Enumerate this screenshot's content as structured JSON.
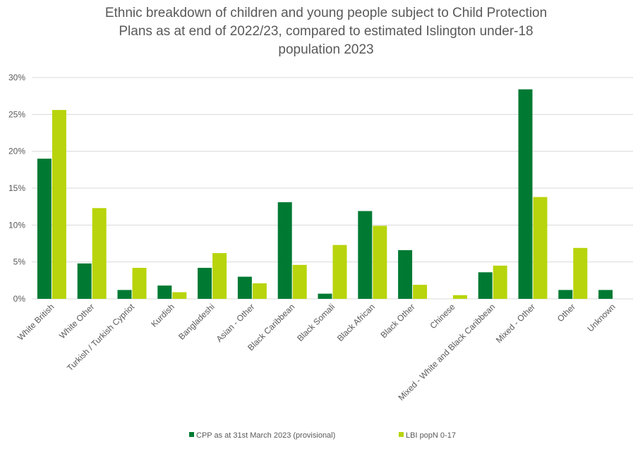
{
  "chart_data": {
    "type": "bar",
    "title_lines": [
      "Ethnic breakdown of children and young people subject to Child Protection",
      "Plans as at end of 2022/23, compared to estimated Islington under-18",
      "population 2023"
    ],
    "categories": [
      "White British",
      "White Other",
      "Turkish / Turkish Cypriot",
      "Kurdish",
      "Bangladeshi",
      "Asian - Other",
      "Black Caribbean",
      "Black Somali",
      "Black African",
      "Black Other",
      "Chinese",
      "Mixed - White and Black Caribbean",
      "Mixed - Other",
      "Other",
      "Unknown"
    ],
    "series": [
      {
        "name": "CPP as at 31st March 2023 (provisional)",
        "color": "#007a33",
        "values": [
          19.0,
          4.8,
          1.2,
          1.8,
          4.2,
          3.0,
          13.1,
          0.7,
          11.9,
          6.6,
          0,
          3.6,
          28.4,
          1.2,
          1.2
        ]
      },
      {
        "name": "LBI popN 0-17",
        "color": "#b8d40c",
        "values": [
          25.6,
          12.3,
          4.2,
          0.9,
          6.2,
          2.1,
          4.6,
          7.3,
          9.9,
          1.9,
          0.5,
          4.5,
          13.8,
          6.9,
          0
        ]
      }
    ],
    "y_ticks": [
      "0%",
      "5%",
      "10%",
      "15%",
      "20%",
      "25%",
      "30%"
    ],
    "ylim": [
      0,
      30
    ],
    "grid": true,
    "legend_position": "bottom"
  }
}
